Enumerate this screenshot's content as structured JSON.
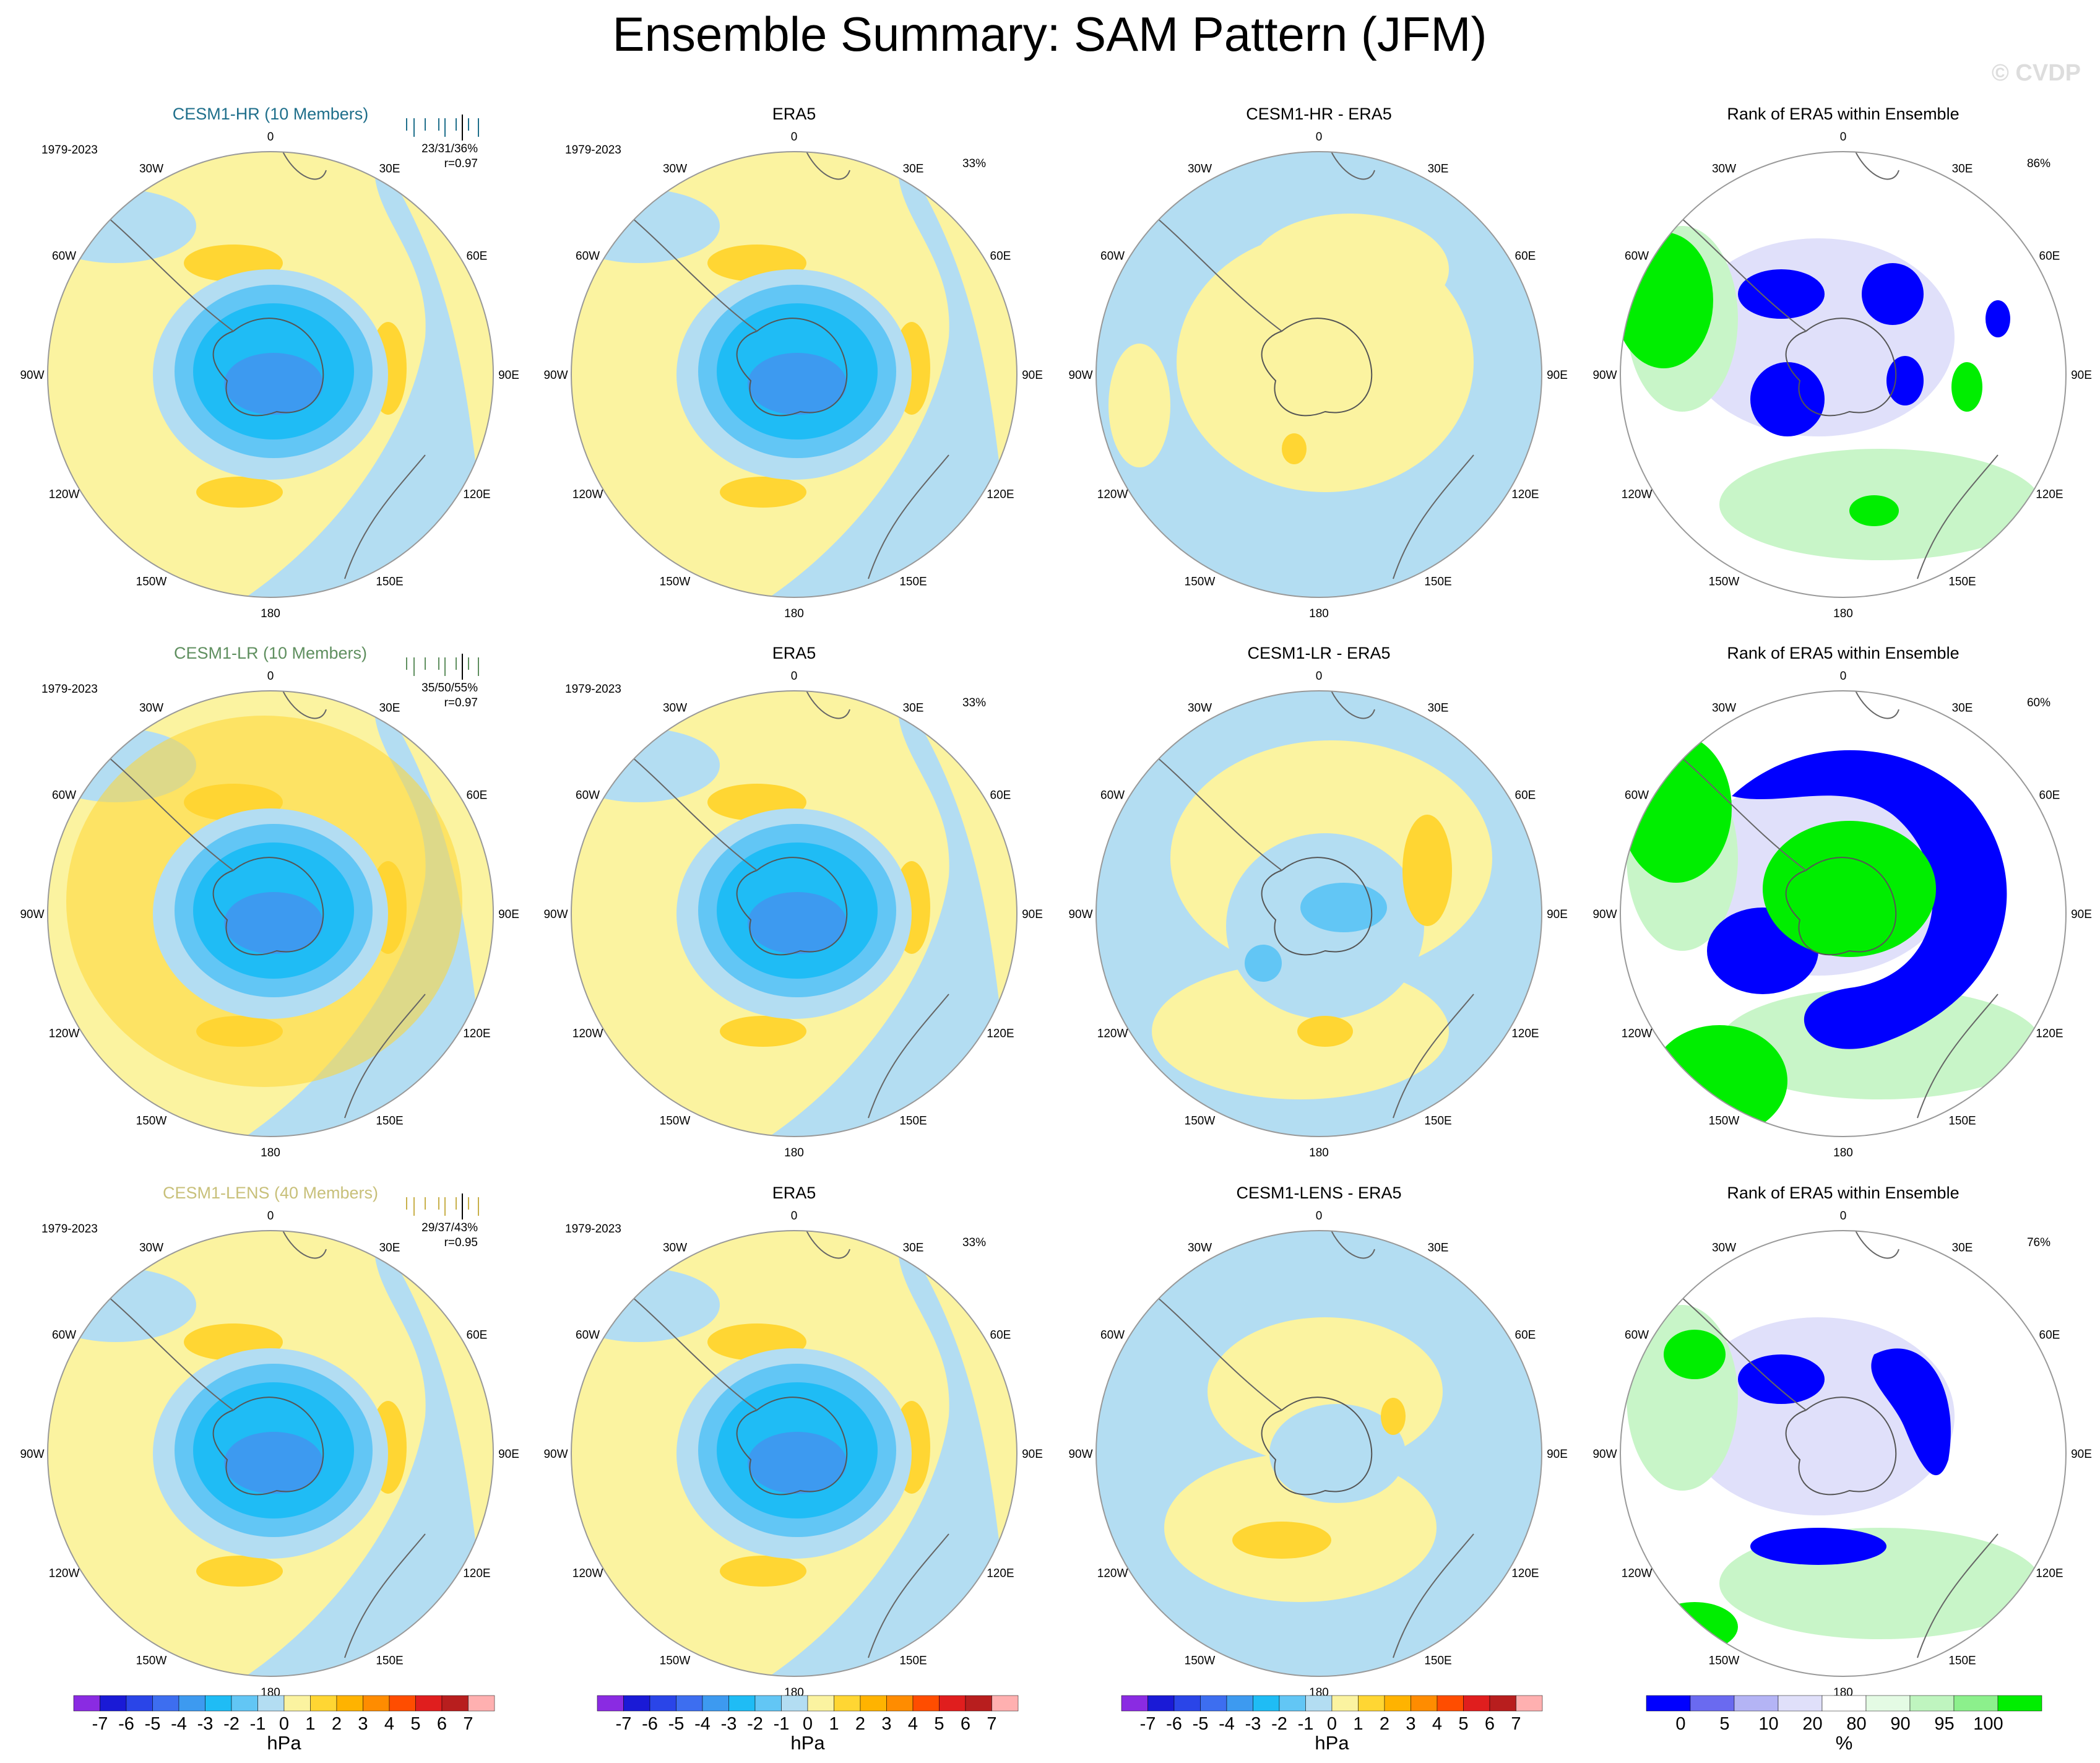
{
  "title": "Ensemble Summary: SAM Pattern (JFM)",
  "watermark": "© CVDP",
  "period": "1979-2023",
  "lon_labels": [
    "0",
    "30E",
    "60E",
    "90E",
    "120E",
    "150E",
    "180",
    "150W",
    "120W",
    "90W",
    "60W",
    "30W"
  ],
  "rows": [
    {
      "model": "CESM1-HR (10 Members)",
      "model_color": "#1f6f8b",
      "tick_color": "#1f6f8b",
      "stats_line1": "23/31/36%",
      "stats_line2": "r=0.97",
      "era5_title": "ERA5",
      "era5_pct": "33%",
      "diff_title": "CESM1-HR - ERA5",
      "rank_title": "Rank of ERA5 within Ensemble",
      "rank_pct": "86%"
    },
    {
      "model": "CESM1-LR (10 Members)",
      "model_color": "#5f8f5f",
      "tick_color": "#5f8f5f",
      "stats_line1": "35/50/55%",
      "stats_line2": "r=0.97",
      "era5_title": "ERA5",
      "era5_pct": "33%",
      "diff_title": "CESM1-LR - ERA5",
      "rank_title": "Rank of ERA5 within Ensemble",
      "rank_pct": "60%"
    },
    {
      "model": "CESM1-LENS (40 Members)",
      "model_color": "#c8c07a",
      "tick_color": "#c8b04a",
      "stats_line1": "29/37/43%",
      "stats_line2": "r=0.95",
      "era5_title": "ERA5",
      "era5_pct": "33%",
      "diff_title": "CESM1-LENS - ERA5",
      "rank_title": "Rank of ERA5 within Ensemble",
      "rank_pct": "76%"
    }
  ],
  "colorbar_hpa": {
    "unit": "hPa",
    "labels": [
      "-7",
      "-6",
      "-5",
      "-4",
      "-3",
      "-2",
      "-1",
      "0",
      "1",
      "2",
      "3",
      "4",
      "5",
      "6",
      "7"
    ],
    "colors": [
      "#8a2be2",
      "#1a1ad6",
      "#2a45e8",
      "#3d6ef0",
      "#3d9af0",
      "#1fbcf5",
      "#62c6f5",
      "#b3ddf2",
      "#fbf3a0",
      "#ffd633",
      "#ffb300",
      "#ff8c00",
      "#ff4d00",
      "#e01e1e",
      "#b81e1e",
      "#ffb0b0"
    ]
  },
  "colorbar_rank": {
    "unit": "%",
    "labels": [
      "0",
      "5",
      "10",
      "20",
      "80",
      "90",
      "95",
      "100"
    ],
    "colors": [
      "#0000ff",
      "#6a6af0",
      "#b4b4f5",
      "#e0e0fa",
      "#ffffff",
      "#e4fbe4",
      "#bff5bf",
      "#8cf08c",
      "#00ee00"
    ]
  },
  "colors": {
    "yellow": "#fbf3a0",
    "lightblue": "#b3ddf2",
    "midblue": "#62c6f5",
    "blue": "#1fbcf5",
    "deepblue": "#3d9af0",
    "orange": "#ffd633",
    "darkorange": "#ffb300",
    "rank_blue": "#0000ff",
    "rank_green": "#00ee00",
    "rank_lightgreen": "#c8f5c8",
    "rank_lightblue": "#e0e0fa"
  },
  "chart_data": [
    {
      "type": "heatmap",
      "title": "CESM1-HR (10 Members)",
      "projection": "south polar stereographic",
      "variable": "SAM pattern SLP regression",
      "units": "hPa",
      "range": [
        -7,
        7
      ],
      "pattern": "negative center over Antarctica, positive midlatitude ring"
    },
    {
      "type": "heatmap",
      "title": "ERA5",
      "units": "hPa",
      "range": [
        -7,
        7
      ]
    },
    {
      "type": "heatmap",
      "title": "CESM1-HR - ERA5",
      "units": "hPa",
      "range": [
        -7,
        7
      ]
    },
    {
      "type": "heatmap",
      "title": "Rank of ERA5 within Ensemble",
      "units": "%",
      "levels": [
        0,
        5,
        10,
        20,
        80,
        90,
        95,
        100
      ]
    },
    {
      "type": "heatmap",
      "title": "CESM1-LR (10 Members)",
      "units": "hPa",
      "range": [
        -7,
        7
      ]
    },
    {
      "type": "heatmap",
      "title": "ERA5",
      "units": "hPa",
      "range": [
        -7,
        7
      ]
    },
    {
      "type": "heatmap",
      "title": "CESM1-LR - ERA5",
      "units": "hPa",
      "range": [
        -7,
        7
      ]
    },
    {
      "type": "heatmap",
      "title": "Rank of ERA5 within Ensemble",
      "units": "%",
      "levels": [
        0,
        5,
        10,
        20,
        80,
        90,
        95,
        100
      ]
    },
    {
      "type": "heatmap",
      "title": "CESM1-LENS (40 Members)",
      "units": "hPa",
      "range": [
        -7,
        7
      ]
    },
    {
      "type": "heatmap",
      "title": "ERA5",
      "units": "hPa",
      "range": [
        -7,
        7
      ]
    },
    {
      "type": "heatmap",
      "title": "CESM1-LENS - ERA5",
      "units": "hPa",
      "range": [
        -7,
        7
      ]
    },
    {
      "type": "heatmap",
      "title": "Rank of ERA5 within Ensemble",
      "units": "%",
      "levels": [
        0,
        5,
        10,
        20,
        80,
        90,
        95,
        100
      ]
    }
  ]
}
